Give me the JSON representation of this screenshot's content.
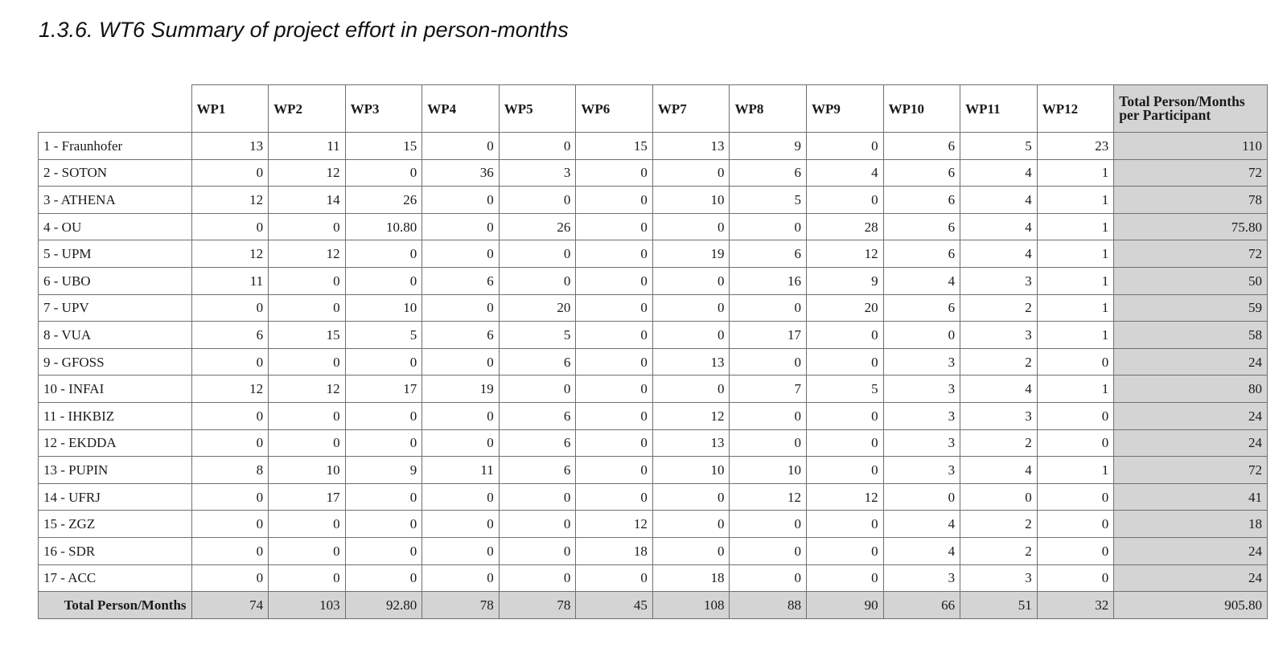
{
  "document": {
    "title": "1.3.6. WT6 Summary of project effort in person-months"
  },
  "table": {
    "columns": [
      "WP1",
      "WP2",
      "WP3",
      "WP4",
      "WP5",
      "WP6",
      "WP7",
      "WP8",
      "WP9",
      "WP10",
      "WP11",
      "WP12"
    ],
    "total_column_label": "Total Person/Months per Participant",
    "rows": [
      {
        "participant": "1 - Fraunhofer",
        "values": [
          "13",
          "11",
          "15",
          "0",
          "0",
          "15",
          "13",
          "9",
          "0",
          "6",
          "5",
          "23"
        ],
        "total": "110"
      },
      {
        "participant": "2 - SOTON",
        "values": [
          "0",
          "12",
          "0",
          "36",
          "3",
          "0",
          "0",
          "6",
          "4",
          "6",
          "4",
          "1"
        ],
        "total": "72"
      },
      {
        "participant": "3 - ATHENA",
        "values": [
          "12",
          "14",
          "26",
          "0",
          "0",
          "0",
          "10",
          "5",
          "0",
          "6",
          "4",
          "1"
        ],
        "total": "78"
      },
      {
        "participant": "4 - OU",
        "values": [
          "0",
          "0",
          "10.80",
          "0",
          "26",
          "0",
          "0",
          "0",
          "28",
          "6",
          "4",
          "1"
        ],
        "total": "75.80"
      },
      {
        "participant": "5 - UPM",
        "values": [
          "12",
          "12",
          "0",
          "0",
          "0",
          "0",
          "19",
          "6",
          "12",
          "6",
          "4",
          "1"
        ],
        "total": "72"
      },
      {
        "participant": "6 - UBO",
        "values": [
          "11",
          "0",
          "0",
          "6",
          "0",
          "0",
          "0",
          "16",
          "9",
          "4",
          "3",
          "1"
        ],
        "total": "50"
      },
      {
        "participant": "7 - UPV",
        "values": [
          "0",
          "0",
          "10",
          "0",
          "20",
          "0",
          "0",
          "0",
          "20",
          "6",
          "2",
          "1"
        ],
        "total": "59"
      },
      {
        "participant": "8 - VUA",
        "values": [
          "6",
          "15",
          "5",
          "6",
          "5",
          "0",
          "0",
          "17",
          "0",
          "0",
          "3",
          "1"
        ],
        "total": "58"
      },
      {
        "participant": "9 - GFOSS",
        "values": [
          "0",
          "0",
          "0",
          "0",
          "6",
          "0",
          "13",
          "0",
          "0",
          "3",
          "2",
          "0"
        ],
        "total": "24"
      },
      {
        "participant": "10 - INFAI",
        "values": [
          "12",
          "12",
          "17",
          "19",
          "0",
          "0",
          "0",
          "7",
          "5",
          "3",
          "4",
          "1"
        ],
        "total": "80"
      },
      {
        "participant": "11 - IHKBIZ",
        "values": [
          "0",
          "0",
          "0",
          "0",
          "6",
          "0",
          "12",
          "0",
          "0",
          "3",
          "3",
          "0"
        ],
        "total": "24"
      },
      {
        "participant": "12 - EKDDA",
        "values": [
          "0",
          "0",
          "0",
          "0",
          "6",
          "0",
          "13",
          "0",
          "0",
          "3",
          "2",
          "0"
        ],
        "total": "24"
      },
      {
        "participant": "13 - PUPIN",
        "values": [
          "8",
          "10",
          "9",
          "11",
          "6",
          "0",
          "10",
          "10",
          "0",
          "3",
          "4",
          "1"
        ],
        "total": "72"
      },
      {
        "participant": "14 - UFRJ",
        "values": [
          "0",
          "17",
          "0",
          "0",
          "0",
          "0",
          "0",
          "12",
          "12",
          "0",
          "0",
          "0"
        ],
        "total": "41"
      },
      {
        "participant": "15 - ZGZ",
        "values": [
          "0",
          "0",
          "0",
          "0",
          "0",
          "12",
          "0",
          "0",
          "0",
          "4",
          "2",
          "0"
        ],
        "total": "18"
      },
      {
        "participant": "16 - SDR",
        "values": [
          "0",
          "0",
          "0",
          "0",
          "0",
          "18",
          "0",
          "0",
          "0",
          "4",
          "2",
          "0"
        ],
        "total": "24"
      },
      {
        "participant": "17 - ACC",
        "values": [
          "0",
          "0",
          "0",
          "0",
          "0",
          "0",
          "18",
          "0",
          "0",
          "3",
          "3",
          "0"
        ],
        "total": "24"
      }
    ],
    "totals_row": {
      "label": "Total Person/Months",
      "values": [
        "74",
        "103",
        "92.80",
        "78",
        "78",
        "45",
        "108",
        "88",
        "90",
        "66",
        "51",
        "32"
      ],
      "grand_total": "905.80"
    }
  },
  "colors": {
    "total_shading": "#d4d4d4",
    "grid": "#6f6f6f"
  }
}
